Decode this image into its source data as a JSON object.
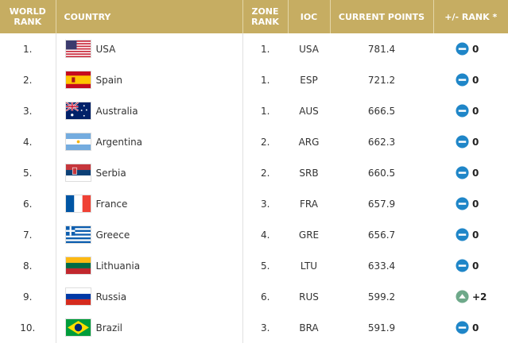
{
  "table": {
    "header": [
      "WORLD RANK",
      "COUNTRY",
      "ZONE RANK",
      "IOC",
      "CURRENT POINTS",
      "+/- RANK *"
    ],
    "rows": [
      {
        "world_rank": "1.",
        "country": "USA",
        "zone_rank": "1.",
        "ioc": "USA",
        "points": "781.4",
        "change": "0"
      },
      {
        "world_rank": "2.",
        "country": "Spain",
        "zone_rank": "1.",
        "ioc": "ESP",
        "points": "721.2",
        "change": "0"
      },
      {
        "world_rank": "3.",
        "country": "Australia",
        "zone_rank": "1.",
        "ioc": "AUS",
        "points": "666.5",
        "change": "0"
      },
      {
        "world_rank": "4.",
        "country": "Argentina",
        "zone_rank": "2.",
        "ioc": "ARG",
        "points": "662.3",
        "change": "0"
      },
      {
        "world_rank": "5.",
        "country": "Serbia",
        "zone_rank": "2.",
        "ioc": "SRB",
        "points": "660.5",
        "change": "0"
      },
      {
        "world_rank": "6.",
        "country": "France",
        "zone_rank": "3.",
        "ioc": "FRA",
        "points": "657.9",
        "change": "0"
      },
      {
        "world_rank": "7.",
        "country": "Greece",
        "zone_rank": "4.",
        "ioc": "GRE",
        "points": "656.7",
        "change": "0"
      },
      {
        "world_rank": "8.",
        "country": "Lithuania",
        "zone_rank": "5.",
        "ioc": "LTU",
        "points": "633.4",
        "change": "0"
      },
      {
        "world_rank": "9.",
        "country": "Russia",
        "zone_rank": "6.",
        "ioc": "RUS",
        "points": "599.2",
        "change": "+2"
      },
      {
        "world_rank": "10.",
        "country": "Brazil",
        "zone_rank": "3.",
        "ioc": "BRA",
        "points": "591.9",
        "change": "0"
      }
    ]
  }
}
